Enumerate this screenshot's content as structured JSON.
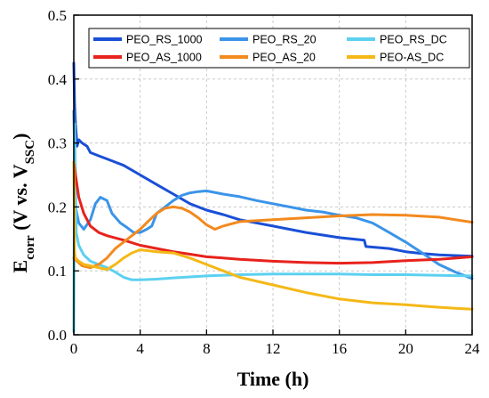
{
  "chart_data": {
    "type": "line",
    "xlabel": "Time (h)",
    "ylabel": {
      "main": "E",
      "sub": "corr",
      "mid": " (V vs. V",
      "sub2": "SSC",
      "end": ")"
    },
    "xlim": [
      0,
      24
    ],
    "ylim": [
      0,
      0.5
    ],
    "xticks": [
      "0",
      "4",
      "8",
      "12",
      "16",
      "20",
      "24"
    ],
    "yticks": [
      "0.0",
      "0.1",
      "0.2",
      "0.3",
      "0.4",
      "0.5"
    ],
    "grid": true,
    "legend_position": "top-right",
    "series": [
      {
        "name": "PEO_RS_1000",
        "color": "#1a4fd6",
        "x": [
          0,
          0.05,
          0.1,
          0.2,
          0.3,
          0.5,
          0.8,
          1.0,
          1.5,
          2.0,
          2.5,
          3,
          4,
          5,
          6,
          7,
          8,
          9,
          10,
          12,
          14,
          16,
          17.5,
          17.6,
          19,
          20,
          21,
          22,
          23,
          24
        ],
        "y": [
          0.425,
          0.36,
          0.33,
          0.295,
          0.305,
          0.3,
          0.295,
          0.285,
          0.28,
          0.275,
          0.27,
          0.265,
          0.25,
          0.235,
          0.22,
          0.205,
          0.195,
          0.188,
          0.18,
          0.17,
          0.16,
          0.152,
          0.148,
          0.138,
          0.135,
          0.13,
          0.127,
          0.125,
          0.124,
          0.123
        ]
      },
      {
        "name": "PEO_RS_20",
        "color": "#3b94e8",
        "x": [
          0,
          0.1,
          0.3,
          0.6,
          1.0,
          1.3,
          1.6,
          2.0,
          2.3,
          2.8,
          3.2,
          3.6,
          4,
          4.4,
          4.7,
          5.0,
          5.5,
          6,
          6.5,
          7,
          7.5,
          8,
          9,
          10,
          11,
          12,
          13,
          14,
          15,
          16,
          17,
          18,
          19,
          20,
          21,
          22,
          23,
          24
        ],
        "y": [
          0.35,
          0.2,
          0.175,
          0.165,
          0.18,
          0.205,
          0.215,
          0.21,
          0.19,
          0.175,
          0.168,
          0.16,
          0.16,
          0.165,
          0.17,
          0.19,
          0.2,
          0.21,
          0.218,
          0.222,
          0.224,
          0.225,
          0.22,
          0.216,
          0.21,
          0.205,
          0.2,
          0.195,
          0.192,
          0.187,
          0.183,
          0.175,
          0.16,
          0.145,
          0.128,
          0.11,
          0.098,
          0.088
        ]
      },
      {
        "name": "PEO_RS_DC",
        "color": "#5dd0f0",
        "x": [
          0,
          0.05,
          0.15,
          0.3,
          0.6,
          1.0,
          1.5,
          2.0,
          2.5,
          3.0,
          3.5,
          4,
          5,
          6,
          8,
          10,
          12,
          14,
          16,
          18,
          20,
          22,
          24
        ],
        "y": [
          0.005,
          0.33,
          0.16,
          0.14,
          0.125,
          0.115,
          0.11,
          0.105,
          0.098,
          0.09,
          0.086,
          0.086,
          0.087,
          0.089,
          0.092,
          0.094,
          0.095,
          0.095,
          0.095,
          0.094,
          0.094,
          0.093,
          0.092
        ]
      },
      {
        "name": "PEO_AS_1000",
        "color": "#e8221c",
        "x": [
          0,
          0.1,
          0.3,
          0.6,
          1.0,
          1.5,
          2.0,
          3,
          4,
          5,
          6,
          7,
          8,
          9,
          10,
          12,
          14,
          16,
          18,
          20,
          22,
          24
        ],
        "y": [
          0.27,
          0.25,
          0.215,
          0.19,
          0.17,
          0.16,
          0.155,
          0.148,
          0.14,
          0.135,
          0.13,
          0.126,
          0.122,
          0.12,
          0.118,
          0.115,
          0.113,
          0.112,
          0.113,
          0.116,
          0.118,
          0.122
        ]
      },
      {
        "name": "PEO_AS_20",
        "color": "#f28a1e",
        "x": [
          0,
          0.2,
          0.5,
          1.0,
          1.5,
          2.0,
          2.5,
          3.0,
          3.5,
          4.0,
          4.5,
          5,
          5.5,
          6,
          6.5,
          7,
          7.5,
          8,
          8.5,
          9,
          10,
          12,
          14,
          16,
          18,
          20,
          22,
          24
        ],
        "y": [
          0.12,
          0.115,
          0.108,
          0.105,
          0.11,
          0.12,
          0.135,
          0.145,
          0.155,
          0.165,
          0.178,
          0.19,
          0.198,
          0.2,
          0.198,
          0.192,
          0.183,
          0.172,
          0.165,
          0.17,
          0.177,
          0.18,
          0.183,
          0.186,
          0.188,
          0.187,
          0.184,
          0.176
        ]
      },
      {
        "name": "PEO-AS_DC",
        "color": "#f4b817",
        "x": [
          0,
          0.05,
          0.1,
          0.3,
          0.6,
          1.0,
          1.5,
          2.0,
          2.5,
          3.0,
          3.5,
          4.0,
          5,
          6,
          7,
          8,
          9,
          10,
          12,
          14,
          16,
          18,
          20,
          22,
          24
        ],
        "y": [
          0.27,
          0.13,
          0.12,
          0.115,
          0.11,
          0.108,
          0.105,
          0.102,
          0.11,
          0.12,
          0.128,
          0.133,
          0.13,
          0.128,
          0.12,
          0.11,
          0.1,
          0.09,
          0.078,
          0.066,
          0.056,
          0.05,
          0.047,
          0.043,
          0.04
        ]
      }
    ]
  }
}
